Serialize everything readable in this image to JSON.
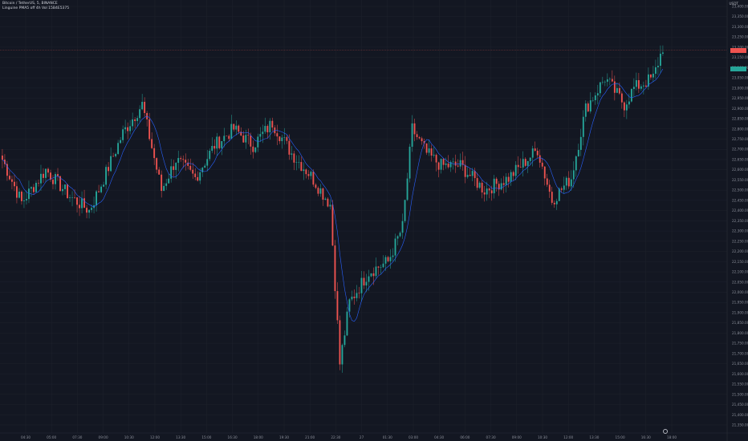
{
  "legend": {
    "symbol_line": "Bitcoin / TetherUS, 5, BINANCE",
    "indicator_line": "Linguine PMA5 off 4h Vol 15B4E5375"
  },
  "price_axis": {
    "unit": "USDT",
    "last_price_tag_color": "#ef5350",
    "ma_tag_color": "#26a69a"
  },
  "time_axis_labels": [
    "04:30",
    "05:00",
    "07:30",
    "09:00",
    "10:30",
    "12:00",
    "13:30",
    "15:00",
    "16:30",
    "18:00",
    "19:30",
    "21:00",
    "22:30",
    "27",
    "01:30",
    "03:00",
    "04:30",
    "06:00",
    "07:30",
    "09:00",
    "10:30",
    "12:00",
    "13:30",
    "15:00",
    "16:30",
    "18:00"
  ],
  "price_ticks": [
    "23,400.00",
    "23,350.00",
    "23,300.00",
    "23,250.00",
    "23,200.00",
    "23,150.00",
    "23,100.00",
    "23,050.00",
    "23,000.00",
    "22,950.00",
    "22,900.00",
    "22,850.00",
    "22,800.00",
    "22,750.00",
    "22,700.00",
    "22,650.00",
    "22,600.00",
    "22,550.00",
    "22,500.00",
    "22,450.00",
    "22,400.00",
    "22,350.00",
    "22,300.00",
    "22,250.00",
    "22,200.00",
    "22,150.00",
    "22,100.00",
    "22,050.00",
    "22,000.00",
    "21,950.00",
    "21,900.00",
    "21,850.00",
    "21,800.00",
    "21,750.00",
    "21,700.00",
    "21,650.00",
    "21,600.00",
    "21,550.00",
    "21,500.00",
    "21,450.00",
    "21,400.00",
    "21,350.00"
  ],
  "colors": {
    "up": "#26a69a",
    "down": "#ef5350",
    "ma": "#2962ff",
    "background": "#131722",
    "grid": "#1e222d"
  },
  "chart_data": {
    "type": "candlestick",
    "ylim": [
      21350,
      23400
    ],
    "price_line": 23185,
    "anchors": [
      [
        0,
        22650
      ],
      [
        8,
        22440
      ],
      [
        18,
        22600
      ],
      [
        28,
        22470
      ],
      [
        36,
        22400
      ],
      [
        40,
        22500
      ],
      [
        50,
        22780
      ],
      [
        58,
        22920
      ],
      [
        66,
        22500
      ],
      [
        72,
        22650
      ],
      [
        80,
        22560
      ],
      [
        88,
        22720
      ],
      [
        96,
        22800
      ],
      [
        104,
        22720
      ],
      [
        112,
        22830
      ],
      [
        120,
        22680
      ],
      [
        128,
        22570
      ],
      [
        136,
        22430
      ],
      [
        140,
        21650
      ],
      [
        144,
        21950
      ],
      [
        152,
        22100
      ],
      [
        160,
        22150
      ],
      [
        166,
        22320
      ],
      [
        170,
        22800
      ],
      [
        176,
        22680
      ],
      [
        182,
        22620
      ],
      [
        190,
        22620
      ],
      [
        200,
        22500
      ],
      [
        210,
        22560
      ],
      [
        222,
        22700
      ],
      [
        228,
        22450
      ],
      [
        236,
        22560
      ],
      [
        242,
        22900
      ],
      [
        250,
        23050
      ],
      [
        258,
        22920
      ],
      [
        262,
        23000
      ],
      [
        270,
        23050
      ],
      [
        274,
        23200
      ]
    ]
  }
}
